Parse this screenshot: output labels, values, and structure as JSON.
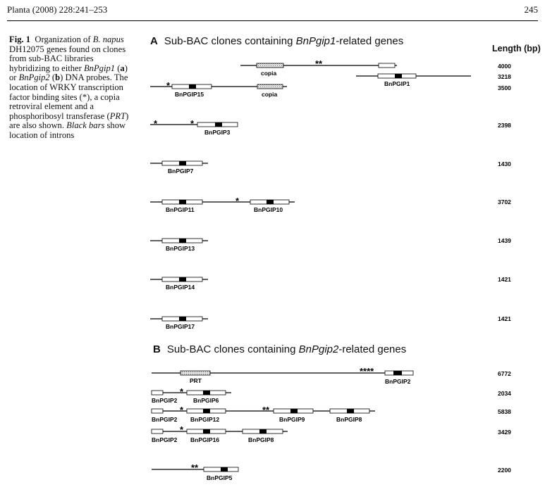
{
  "header": {
    "journal": "Planta (2008) 228:241–253",
    "page_number": "245"
  },
  "caption": {
    "fig_label": "Fig. 1",
    "p1": "Organization of",
    "species": "B. napus",
    "p2": "DH12075 genes found on clones from sub-BAC libraries hybridizing to either",
    "gene1": "BnPgip1",
    "p3": "(",
    "a": "a",
    "p4": ") or",
    "gene2": "BnPgip2",
    "p5": "(",
    "b": "b",
    "p6": ") DNA probes. The location of WRKY transcription factor binding sites (*), a copia retroviral element and a phosphoribosyl transferase (",
    "prt": "PRT",
    "p7": ") are also shown.",
    "black_bars": "Black bars",
    "p8": "show location of introns"
  },
  "figure": {
    "panel_a": {
      "letter": "A",
      "title_pre": "Sub-BAC clones containing ",
      "title_gene": "BnPgip1",
      "title_post": "-related genes"
    },
    "panel_b": {
      "letter": "B",
      "title_pre": "Sub-BAC clones containing ",
      "title_gene": "BnPgip2",
      "title_post": "-related genes"
    },
    "length_header": "Length (bp)",
    "lengths_a": [
      "4000",
      "3218",
      "3500",
      "2398",
      "1430",
      "3702",
      "1439",
      "1421",
      "1421"
    ],
    "lengths_b": [
      "6772",
      "2034",
      "5838",
      "3429",
      "2200"
    ],
    "labels": {
      "copia": "copia",
      "prt": "PRT",
      "BnPGIP1": "BnPGIP1",
      "BnPGIP2": "BnPGIP2",
      "BnPGIP3": "BnPGIP3",
      "BnPGIP5": "BnPGIP5",
      "BnPGIP6": "BnPGIP6",
      "BnPGIP7": "BnPGIP7",
      "BnPGIP8": "BnPGIP8",
      "BnPGIP9": "BnPGIP9",
      "BnPGIP10": "BnPGIP10",
      "BnPGIP11": "BnPGIP11",
      "BnPGIP12": "BnPGIP12",
      "BnPGIP13": "BnPGIP13",
      "BnPGIP14": "BnPGIP14",
      "BnPGIP15": "BnPGIP15",
      "BnPGIP16": "BnPGIP16",
      "BnPGIP17": "BnPGIP17"
    },
    "marks": {
      "one": "*",
      "two": "**",
      "four": "****"
    }
  }
}
